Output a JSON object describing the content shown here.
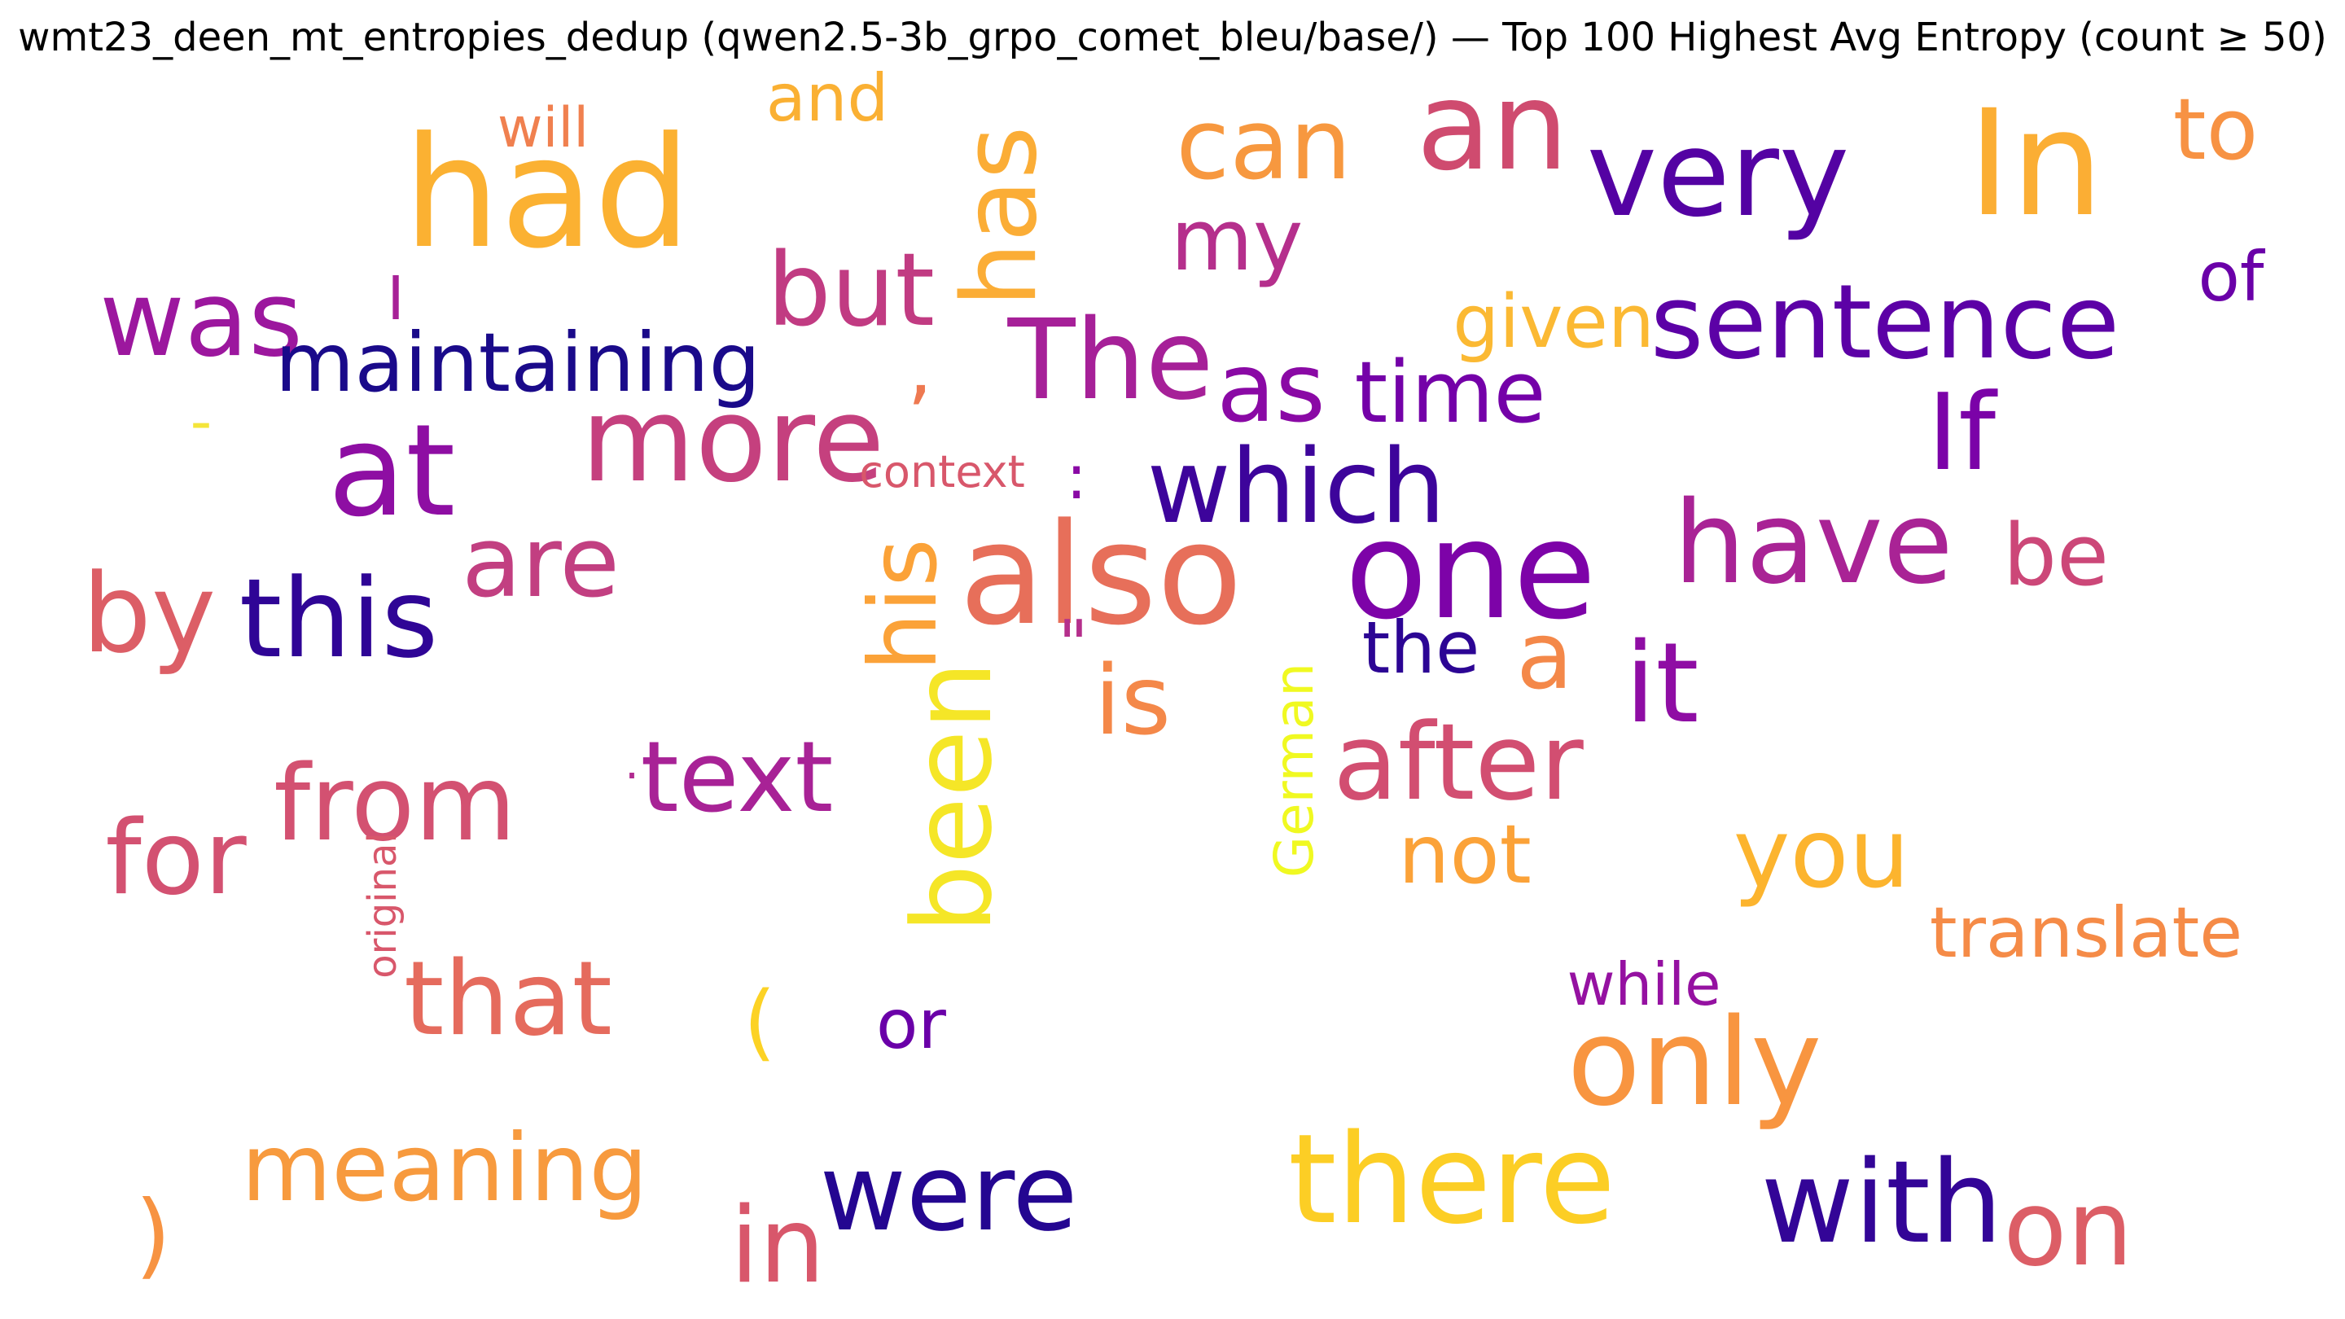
{
  "title": "wmt23_deen_mt_entropies_dedup (qwen2.5-3b_grpo_comet_bleu/base/) — Top 100 Highest Avg Entropy (count ≥ 50)",
  "colors": {
    "background": "#ffffff",
    "palette": "plasma"
  },
  "words": [
    {
      "text": "will",
      "color": "#f0804f"
    },
    {
      "text": "and",
      "color": "#fab033"
    },
    {
      "text": "had",
      "color": "#fbb132"
    },
    {
      "text": "has",
      "color": "#fbad36"
    },
    {
      "text": "can",
      "color": "#f7983f"
    },
    {
      "text": "an",
      "color": "#cf4b6f"
    },
    {
      "text": "very",
      "color": "#5402a3"
    },
    {
      "text": "In",
      "color": "#fbae34"
    },
    {
      "text": "to",
      "color": "#f79243"
    },
    {
      "text": "my",
      "color": "#b52f8c"
    },
    {
      "text": "of",
      "color": "#6a00a8"
    },
    {
      "text": "was",
      "color": "#9c179e"
    },
    {
      "text": "I",
      "color": "#a72197"
    },
    {
      "text": "but",
      "color": "#c13b82"
    },
    {
      "text": "given",
      "color": "#fbb933"
    },
    {
      "text": "sentence",
      "color": "#5c01a6"
    },
    {
      "text": "maintaining",
      "color": "#1a0a8a"
    },
    {
      "text": ",",
      "color": "#ee7951"
    },
    {
      "text": "The",
      "color": "#a62098"
    },
    {
      "text": "as",
      "color": "#8a09a5"
    },
    {
      "text": "time",
      "color": "#7401a8"
    },
    {
      "text": "-",
      "color": "#f4e53a"
    },
    {
      "text": "more",
      "color": "#c5407e"
    },
    {
      "text": "If",
      "color": "#7b02a8"
    },
    {
      "text": "at",
      "color": "#8e0ea3"
    },
    {
      "text": "context",
      "color": "#d8576b"
    },
    {
      "text": ":",
      "color": "#8a09a5"
    },
    {
      "text": "which",
      "color": "#3d049b"
    },
    {
      "text": "are",
      "color": "#c23f81"
    },
    {
      "text": "his",
      "color": "#fba238"
    },
    {
      "text": "also",
      "color": "#e76f5a"
    },
    {
      "text": "one",
      "color": "#7d03a8"
    },
    {
      "text": "have",
      "color": "#a92395"
    },
    {
      "text": "be",
      "color": "#cc4778"
    },
    {
      "text": "by",
      "color": "#dc5e66"
    },
    {
      "text": "this",
      "color": "#2f0596"
    },
    {
      "text": "\"",
      "color": "#b52f8c"
    },
    {
      "text": "the",
      "color": "#2c0594"
    },
    {
      "text": "a",
      "color": "#f48849"
    },
    {
      "text": "it",
      "color": "#8f0da4"
    },
    {
      "text": "is",
      "color": "#f48849"
    },
    {
      "text": "German",
      "color": "#f0f921"
    },
    {
      "text": "after",
      "color": "#d24e71"
    },
    {
      "text": "·",
      "color": "#b12a90"
    },
    {
      "text": "text",
      "color": "#a82296"
    },
    {
      "text": "been",
      "color": "#f5e627"
    },
    {
      "text": "from",
      "color": "#d35171"
    },
    {
      "text": "for",
      "color": "#d35171"
    },
    {
      "text": "original",
      "color": "#d8576b"
    },
    {
      "text": "not",
      "color": "#fba238"
    },
    {
      "text": "you",
      "color": "#fcb42e"
    },
    {
      "text": "translate",
      "color": "#f58b47"
    },
    {
      "text": "that",
      "color": "#e56b5d"
    },
    {
      "text": "while",
      "color": "#9511a1"
    },
    {
      "text": "(",
      "color": "#fcd225"
    },
    {
      "text": "or",
      "color": "#6a00a8"
    },
    {
      "text": "only",
      "color": "#f89540"
    },
    {
      "text": "meaning",
      "color": "#f79a3e"
    },
    {
      "text": "there",
      "color": "#fcce25"
    },
    {
      "text": "were",
      "color": "#240691"
    },
    {
      "text": ")",
      "color": "#f79342"
    },
    {
      "text": "in",
      "color": "#d8576b"
    },
    {
      "text": "with",
      "color": "#330597"
    },
    {
      "text": "on",
      "color": "#dc5e66"
    }
  ]
}
